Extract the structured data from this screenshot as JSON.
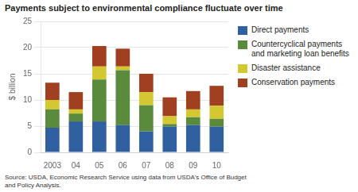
{
  "chart_data": {
    "type": "bar",
    "title": "Payments subject to environmental compliance fluctuate over time",
    "ylabel": "$ billion",
    "source": "Source: USDA, Economic Research Service using data from USDA's Office of Budget\nand Policy Analysis.",
    "categories": [
      "2003",
      "04",
      "05",
      "06",
      "07",
      "08",
      "09",
      "10"
    ],
    "series": [
      {
        "name": "Direct payments",
        "color": "#3060a0",
        "values": [
          4.7,
          5.9,
          5.9,
          5.2,
          4.0,
          4.9,
          5.2,
          4.9
        ]
      },
      {
        "name": "Countercyclical payments\nand marketing loan benefits",
        "color": "#5a8a3c",
        "values": [
          3.5,
          1.5,
          8.0,
          10.5,
          5.0,
          0.5,
          1.5,
          1.5
        ]
      },
      {
        "name": "Disaster assistance",
        "color": "#d4c832",
        "values": [
          1.8,
          0.8,
          2.5,
          0.7,
          2.5,
          1.5,
          1.5,
          2.5
        ]
      },
      {
        "name": "Conservation payments",
        "color": "#a04020",
        "values": [
          3.3,
          3.3,
          3.9,
          3.4,
          3.5,
          3.6,
          3.5,
          3.8
        ]
      }
    ],
    "ylim": [
      0,
      25
    ],
    "yticks": [
      0,
      5,
      10,
      15,
      20,
      25
    ],
    "stacked": true,
    "grid": true,
    "legend": "right"
  }
}
